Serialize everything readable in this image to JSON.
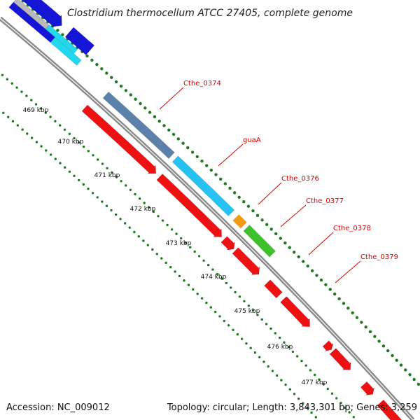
{
  "title": "Clostridium thermocellum ATCC 27405, complete genome",
  "footer": {
    "accession": "Accession: NC_009012",
    "summary": "Topology: circular; Length: 3,843,301 bp; Genes: 3,259"
  },
  "ticks": [
    "469 kbp",
    "470 kbp",
    "471 kbp",
    "472 kbp",
    "473 kbp",
    "474 kbp",
    "475 kbp",
    "476 kbp",
    "477 kbp"
  ],
  "gene_labels": [
    {
      "name": "Cthe_0374",
      "color": "#d40000"
    },
    {
      "name": "guaA",
      "color": "#d40000"
    },
    {
      "name": "Cthe_0376",
      "color": "#d40000"
    },
    {
      "name": "Cthe_0377",
      "color": "#d40000"
    },
    {
      "name": "Cthe_0378",
      "color": "#d40000"
    },
    {
      "name": "Cthe_0379",
      "color": "#d40000"
    }
  ],
  "colors": {
    "backbone": "#8a8a8a",
    "tick_dots": "#1f7a1f",
    "cds": "#ee1111",
    "gene_steel": "#5b81aa",
    "gene_sky": "#26c3f2",
    "gene_orange": "#f39a12",
    "gene_green": "#3fc12e",
    "gene_blue": "#1515d6",
    "gene_cyan": "#22d8ee",
    "gene_grey": "#b9b9b9"
  }
}
